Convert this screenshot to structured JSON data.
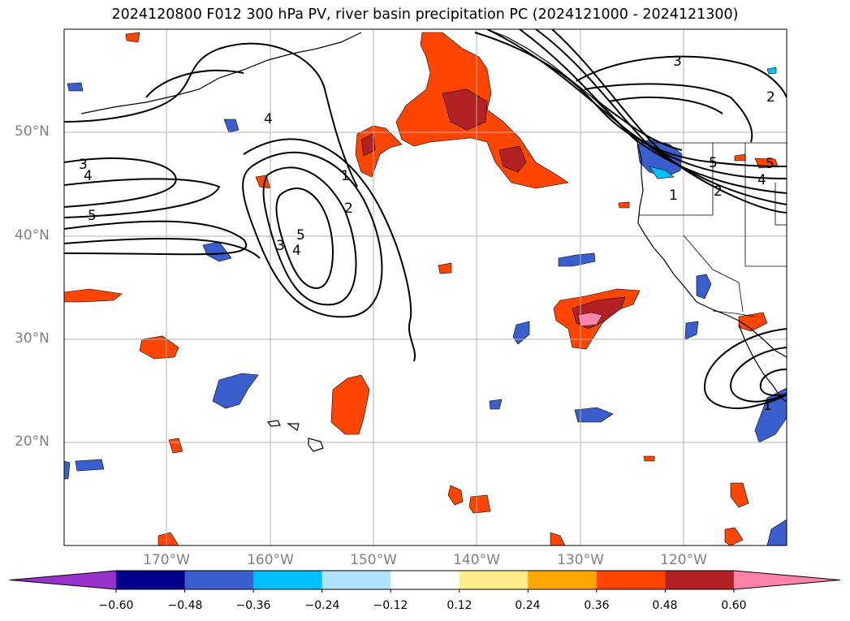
{
  "title": "2024120800 F012 300 hPa PV, river basin precipitation PC (2024121000 - 2024121300)",
  "lat_labels": [
    "50°N",
    "40°N",
    "30°N",
    "20°N"
  ],
  "lon_labels": [
    "170°W",
    "160°W",
    "150°W",
    "140°W",
    "130°W",
    "120°W"
  ],
  "contour_labels": [
    "3",
    "4",
    "5",
    "1",
    "2",
    "5",
    "4",
    "3",
    "4",
    "3",
    "5",
    "1",
    "2",
    "4",
    "5",
    "1",
    "2"
  ],
  "colorbar": {
    "ticks": [
      "−0.60",
      "−0.48",
      "−0.36",
      "−0.24",
      "−0.12",
      "0.12",
      "0.24",
      "0.36",
      "0.48",
      "0.60"
    ],
    "colors": [
      "#9932cc",
      "#00008b",
      "#3a5fcd",
      "#00bfff",
      "#b0e2ff",
      "#ffffff",
      "#ffec8b",
      "#ffa500",
      "#ff4500",
      "#b22222",
      "#ff82ab",
      "#ff82ab"
    ]
  }
}
